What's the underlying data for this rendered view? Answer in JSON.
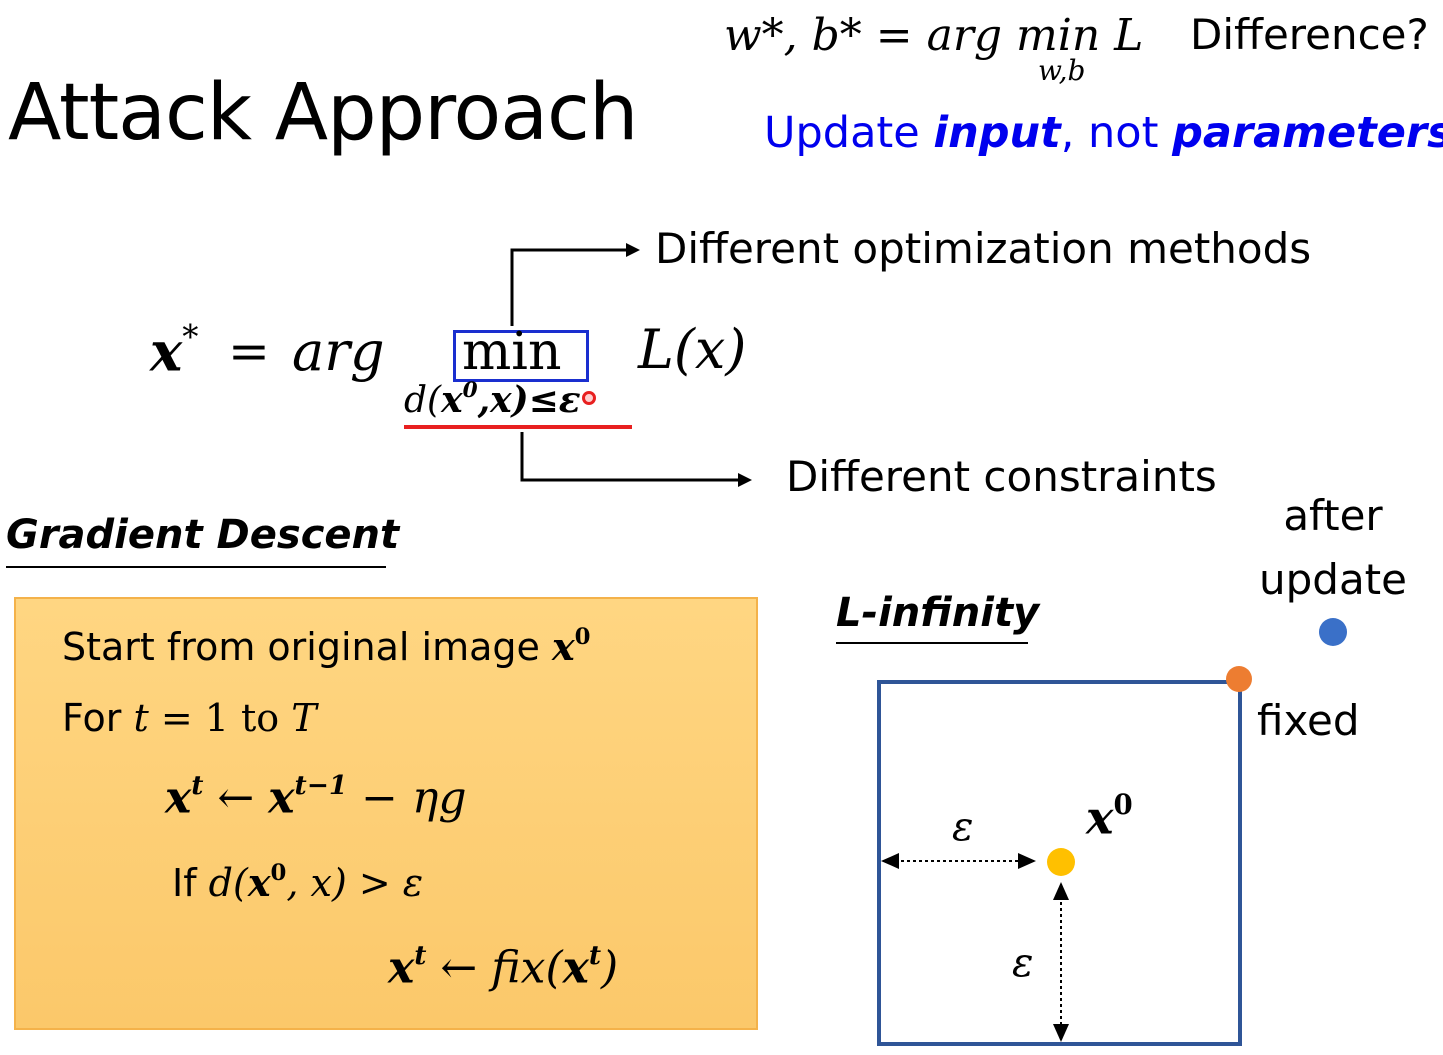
{
  "title": "Attack Approach",
  "header_eq": {
    "lhs": "w*, b* = arg min L",
    "subscript": "w,b",
    "question": "Difference?",
    "note_pre": "Update ",
    "note_input": "input",
    "note_mid": ", not ",
    "note_params": "parameters"
  },
  "objective": {
    "x_star": "x",
    "star": "*",
    "equals": "=",
    "arg": "arg",
    "min": "min",
    "loss": "L(x)",
    "constraint_d": "d(",
    "constraint_x0": "x",
    "constraint_sup": "0",
    "constraint_rest": ",x)≤ε"
  },
  "annotations": {
    "optimization": "Different optimization methods",
    "constraints": "Different constraints"
  },
  "gradient_descent": {
    "heading": "Gradient Descent",
    "line1_text": "Start from original image ",
    "line1_var": "x",
    "line1_sup": "0",
    "line2_pre": "For ",
    "line2_t": "t",
    "line2_mid": " = 1 to ",
    "line2_T": "T",
    "line3_a": "x",
    "line3_a_sup": "t",
    "line3_arrow": " ← ",
    "line3_b": "x",
    "line3_b_sup": "t−1",
    "line3_rest": " − ηg",
    "line4_pre": "If ",
    "line4_d": "d(",
    "line4_x0": "x",
    "line4_x0_sup": "0",
    "line4_rest": ", x) > ε",
    "line5_a": "x",
    "line5_a_sup": "t",
    "line5_mid": " ← fix(",
    "line5_b": "x",
    "line5_b_sup": "t",
    "line5_end": ")"
  },
  "l_infinity": {
    "heading": "L-infinity",
    "after_update": "after update",
    "fixed": "fixed",
    "x0": "x",
    "x0_sup": "0",
    "epsilon_h": "ε",
    "epsilon_v": "ε"
  },
  "colors": {
    "blue_text": "#0000ee",
    "min_box": "#1a2fcf",
    "red_line": "#e82020",
    "gd_box": "#fbc86a",
    "square": "#2f5597",
    "dot_blue": "#3a70c8",
    "dot_orange": "#ed7d31",
    "dot_yellow": "#ffc000"
  }
}
